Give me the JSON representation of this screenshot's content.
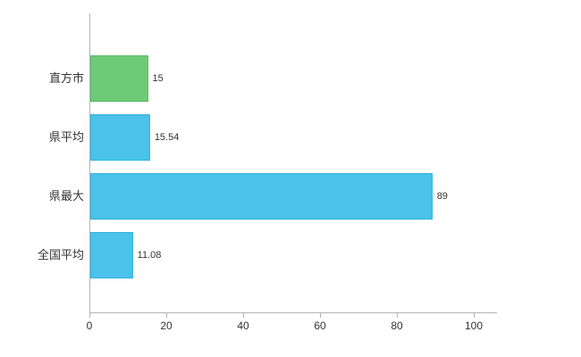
{
  "chart_data": {
    "type": "bar",
    "orientation": "horizontal",
    "title": "",
    "categories": [
      "直方市",
      "県平均",
      "県最大",
      "全国平均"
    ],
    "values": [
      15,
      15.54,
      89,
      11.08
    ],
    "value_labels": [
      "15",
      "15.54",
      "89",
      "11.08"
    ],
    "bar_colors": [
      "#6dcb77",
      "#4ac2ea",
      "#4ac2ea",
      "#4ac2ea"
    ],
    "bar_border_colors": [
      "#57bb64",
      "#35b3de",
      "#35b3de",
      "#35b3de"
    ],
    "xlim": [
      0,
      100
    ],
    "x_ticks": [
      0,
      20,
      40,
      60,
      80,
      100
    ],
    "grid": false,
    "legend": null
  },
  "colors": {
    "axis": "#b3b3b3",
    "text": "#333333",
    "background": "#ffffff"
  }
}
